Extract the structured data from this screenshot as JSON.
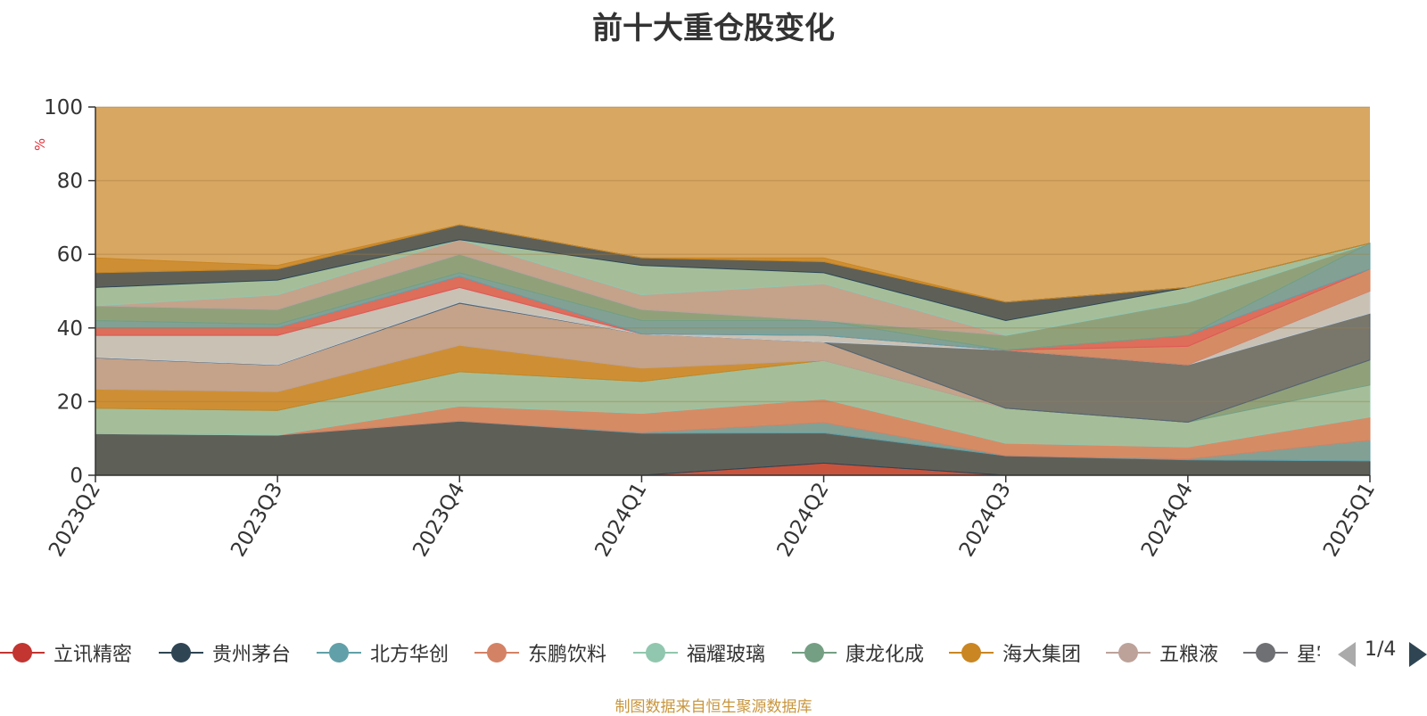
{
  "title": "前十大重仓股变化",
  "source_note": "制图数据来自恒生聚源数据库",
  "legend_page": "1/4",
  "chart_data": {
    "type": "area",
    "title": "前十大重仓股变化",
    "ylabel": "%",
    "ylim": [
      0,
      100
    ],
    "yticks": [
      0,
      20,
      40,
      60,
      80,
      100
    ],
    "stacked": true,
    "grid": true,
    "x": [
      "2023Q2",
      "2023Q3",
      "2023Q4",
      "2024Q1",
      "2024Q2",
      "2024Q3",
      "2024Q4",
      "2025Q1"
    ],
    "series": [
      {
        "name": "立讯精密",
        "color": "#c23531",
        "values": [
          0,
          0,
          0,
          0,
          3.3,
          0,
          0,
          0
        ]
      },
      {
        "name": "贵州茅台",
        "color": "#2f4554",
        "values": [
          11.3,
          10.9,
          14.7,
          11.4,
          8.2,
          5.3,
          4.2,
          3.9
        ]
      },
      {
        "name": "北方华创",
        "color": "#61a0a8",
        "values": [
          0,
          0,
          0,
          0.2,
          2.8,
          0,
          0.2,
          5.6
        ]
      },
      {
        "name": "东鹏饮料",
        "color": "#d48265",
        "values": [
          0,
          0,
          4.1,
          5.2,
          6.4,
          3.4,
          3.3,
          6.3
        ]
      },
      {
        "name": "福耀玻璃",
        "color": "#91c7ae",
        "values": [
          6.9,
          6.7,
          9.3,
          8.7,
          10.5,
          9.5,
          6.7,
          8.7
        ]
      },
      {
        "name": "康龙化成",
        "color": "#749f83",
        "values": [
          0,
          0,
          0,
          0,
          0,
          0,
          0,
          6.8
        ]
      },
      {
        "name": "海大集团",
        "color": "#ca8622",
        "values": [
          5.2,
          5.1,
          7.2,
          3.6,
          0,
          0,
          0,
          0
        ]
      },
      {
        "name": "五粮液",
        "color": "#bda29a",
        "values": [
          8.5,
          7.2,
          11.4,
          9.3,
          5.0,
          0,
          0,
          0
        ]
      },
      {
        "name": "星宇股份",
        "color": "#6e7074",
        "values": [
          0,
          0,
          0,
          0,
          0,
          0,
          0,
          0
        ]
      }
    ],
    "other_layers": {
      "colors": [
        "#546570",
        "#c4ccd3",
        "#d48265",
        "#e05858",
        "#61a0a8",
        "#749f83",
        "#bda29a",
        "#91c7ae",
        "#2f4554",
        "#ca8622",
        "#6e7074"
      ],
      "tops": [
        [
          32,
          30,
          47,
          38,
          36,
          34,
          30,
          44
        ],
        [
          38,
          38,
          51,
          38,
          38,
          34,
          30,
          50
        ],
        [
          38,
          38,
          51,
          38,
          38,
          34,
          35,
          56
        ],
        [
          40,
          40,
          54,
          38,
          38,
          34,
          38,
          56
        ],
        [
          42,
          41,
          55,
          42,
          42,
          34,
          38,
          63
        ],
        [
          46,
          45,
          60,
          45,
          42,
          38,
          47,
          63
        ],
        [
          46,
          49,
          64,
          49,
          52,
          38,
          47,
          63
        ],
        [
          51,
          53,
          64,
          57,
          55,
          42,
          51,
          63
        ],
        [
          55,
          56,
          68,
          59,
          58,
          47,
          51,
          63
        ],
        [
          59,
          57,
          68,
          59,
          59,
          47,
          51,
          63
        ]
      ]
    },
    "background_fill": "#d8a762"
  }
}
